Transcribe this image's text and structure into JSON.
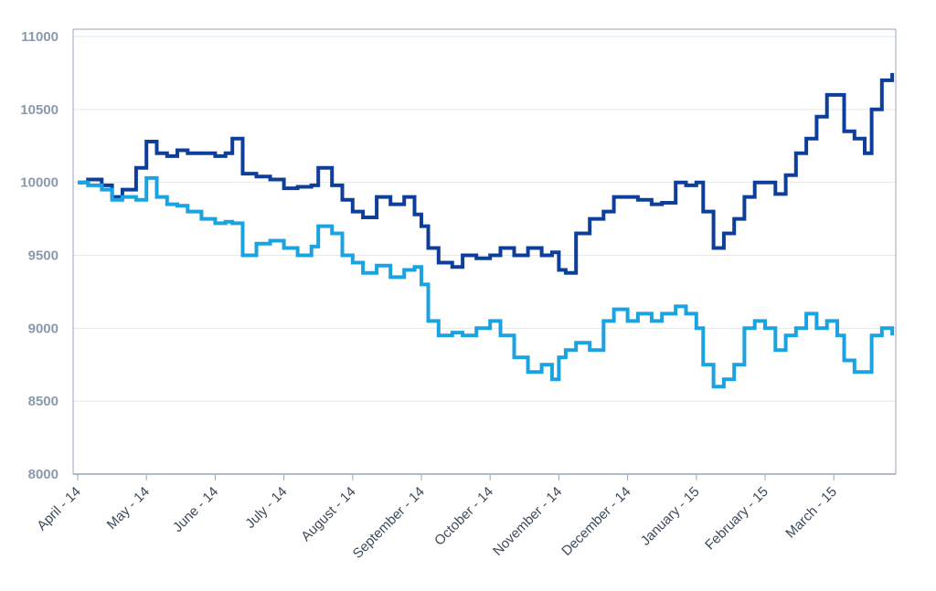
{
  "chart_data": {
    "type": "line",
    "title": "",
    "xlabel": "",
    "ylabel": "",
    "ylim": [
      8000,
      11000
    ],
    "yticks": [
      8000,
      8500,
      9000,
      9500,
      10000,
      10500,
      11000
    ],
    "categories": [
      "April - 14",
      "May - 14",
      "June - 14",
      "July - 14",
      "August - 14",
      "September - 14",
      "October - 14",
      "November - 14",
      "December - 14",
      "January - 15",
      "February - 15",
      "March - 15"
    ],
    "grid": true,
    "legend": "none",
    "colors": {
      "dark_series": "#0d3f9a",
      "light_series": "#1aa3e0",
      "grid": "#e3e8ee",
      "axis": "#9aa6bd"
    },
    "series": [
      {
        "color": "#0d3f9a",
        "values": [
          [
            0,
            10000
          ],
          [
            0.15,
            10020
          ],
          [
            0.35,
            9980
          ],
          [
            0.5,
            9900
          ],
          [
            0.65,
            9950
          ],
          [
            0.85,
            10100
          ],
          [
            1.0,
            10280
          ],
          [
            1.15,
            10200
          ],
          [
            1.3,
            10180
          ],
          [
            1.45,
            10220
          ],
          [
            1.6,
            10200
          ],
          [
            1.8,
            10200
          ],
          [
            2.0,
            10180
          ],
          [
            2.15,
            10200
          ],
          [
            2.25,
            10300
          ],
          [
            2.4,
            10060
          ],
          [
            2.6,
            10040
          ],
          [
            2.8,
            10020
          ],
          [
            3.0,
            9960
          ],
          [
            3.2,
            9970
          ],
          [
            3.4,
            9980
          ],
          [
            3.5,
            10100
          ],
          [
            3.7,
            9980
          ],
          [
            3.85,
            9880
          ],
          [
            4.0,
            9800
          ],
          [
            4.15,
            9760
          ],
          [
            4.35,
            9900
          ],
          [
            4.55,
            9850
          ],
          [
            4.75,
            9900
          ],
          [
            4.9,
            9780
          ],
          [
            5.0,
            9700
          ],
          [
            5.1,
            9550
          ],
          [
            5.25,
            9450
          ],
          [
            5.45,
            9420
          ],
          [
            5.6,
            9500
          ],
          [
            5.8,
            9480
          ],
          [
            6.0,
            9500
          ],
          [
            6.15,
            9550
          ],
          [
            6.35,
            9500
          ],
          [
            6.55,
            9550
          ],
          [
            6.75,
            9500
          ],
          [
            6.9,
            9520
          ],
          [
            7.0,
            9400
          ],
          [
            7.1,
            9380
          ],
          [
            7.25,
            9650
          ],
          [
            7.45,
            9750
          ],
          [
            7.65,
            9800
          ],
          [
            7.8,
            9900
          ],
          [
            8.0,
            9900
          ],
          [
            8.15,
            9880
          ],
          [
            8.35,
            9850
          ],
          [
            8.5,
            9860
          ],
          [
            8.7,
            10000
          ],
          [
            8.85,
            9980
          ],
          [
            9.0,
            10000
          ],
          [
            9.1,
            9800
          ],
          [
            9.25,
            9550
          ],
          [
            9.4,
            9650
          ],
          [
            9.55,
            9750
          ],
          [
            9.7,
            9900
          ],
          [
            9.85,
            10000
          ],
          [
            10.0,
            10000
          ],
          [
            10.15,
            9920
          ],
          [
            10.3,
            10050
          ],
          [
            10.45,
            10200
          ],
          [
            10.6,
            10300
          ],
          [
            10.75,
            10450
          ],
          [
            10.9,
            10600
          ],
          [
            11.05,
            10600
          ],
          [
            11.15,
            10350
          ],
          [
            11.3,
            10300
          ],
          [
            11.45,
            10200
          ],
          [
            11.55,
            10500
          ],
          [
            11.7,
            10700
          ],
          [
            11.85,
            10750
          ]
        ]
      },
      {
        "color": "#1aa3e0",
        "values": [
          [
            0,
            10000
          ],
          [
            0.15,
            9980
          ],
          [
            0.35,
            9950
          ],
          [
            0.5,
            9880
          ],
          [
            0.65,
            9900
          ],
          [
            0.85,
            9880
          ],
          [
            1.0,
            10030
          ],
          [
            1.15,
            9900
          ],
          [
            1.3,
            9850
          ],
          [
            1.45,
            9840
          ],
          [
            1.6,
            9800
          ],
          [
            1.8,
            9750
          ],
          [
            2.0,
            9720
          ],
          [
            2.15,
            9730
          ],
          [
            2.25,
            9720
          ],
          [
            2.4,
            9500
          ],
          [
            2.6,
            9580
          ],
          [
            2.8,
            9600
          ],
          [
            3.0,
            9550
          ],
          [
            3.2,
            9500
          ],
          [
            3.4,
            9560
          ],
          [
            3.5,
            9700
          ],
          [
            3.7,
            9650
          ],
          [
            3.85,
            9500
          ],
          [
            4.0,
            9450
          ],
          [
            4.15,
            9380
          ],
          [
            4.35,
            9430
          ],
          [
            4.55,
            9350
          ],
          [
            4.75,
            9400
          ],
          [
            4.9,
            9420
          ],
          [
            5.0,
            9300
          ],
          [
            5.1,
            9050
          ],
          [
            5.25,
            8950
          ],
          [
            5.45,
            8970
          ],
          [
            5.6,
            8950
          ],
          [
            5.8,
            9000
          ],
          [
            6.0,
            9050
          ],
          [
            6.15,
            8950
          ],
          [
            6.35,
            8800
          ],
          [
            6.55,
            8700
          ],
          [
            6.75,
            8750
          ],
          [
            6.9,
            8650
          ],
          [
            7.0,
            8800
          ],
          [
            7.1,
            8850
          ],
          [
            7.25,
            8900
          ],
          [
            7.45,
            8850
          ],
          [
            7.65,
            9050
          ],
          [
            7.8,
            9130
          ],
          [
            8.0,
            9050
          ],
          [
            8.15,
            9100
          ],
          [
            8.35,
            9050
          ],
          [
            8.5,
            9100
          ],
          [
            8.7,
            9150
          ],
          [
            8.85,
            9100
          ],
          [
            9.0,
            9000
          ],
          [
            9.1,
            8750
          ],
          [
            9.25,
            8600
          ],
          [
            9.4,
            8650
          ],
          [
            9.55,
            8750
          ],
          [
            9.7,
            9000
          ],
          [
            9.85,
            9050
          ],
          [
            10.0,
            9000
          ],
          [
            10.15,
            8850
          ],
          [
            10.3,
            8950
          ],
          [
            10.45,
            9000
          ],
          [
            10.6,
            9100
          ],
          [
            10.75,
            9000
          ],
          [
            10.9,
            9050
          ],
          [
            11.05,
            8950
          ],
          [
            11.15,
            8780
          ],
          [
            11.3,
            8700
          ],
          [
            11.45,
            8700
          ],
          [
            11.55,
            8950
          ],
          [
            11.7,
            9000
          ],
          [
            11.85,
            8950
          ]
        ]
      }
    ]
  }
}
